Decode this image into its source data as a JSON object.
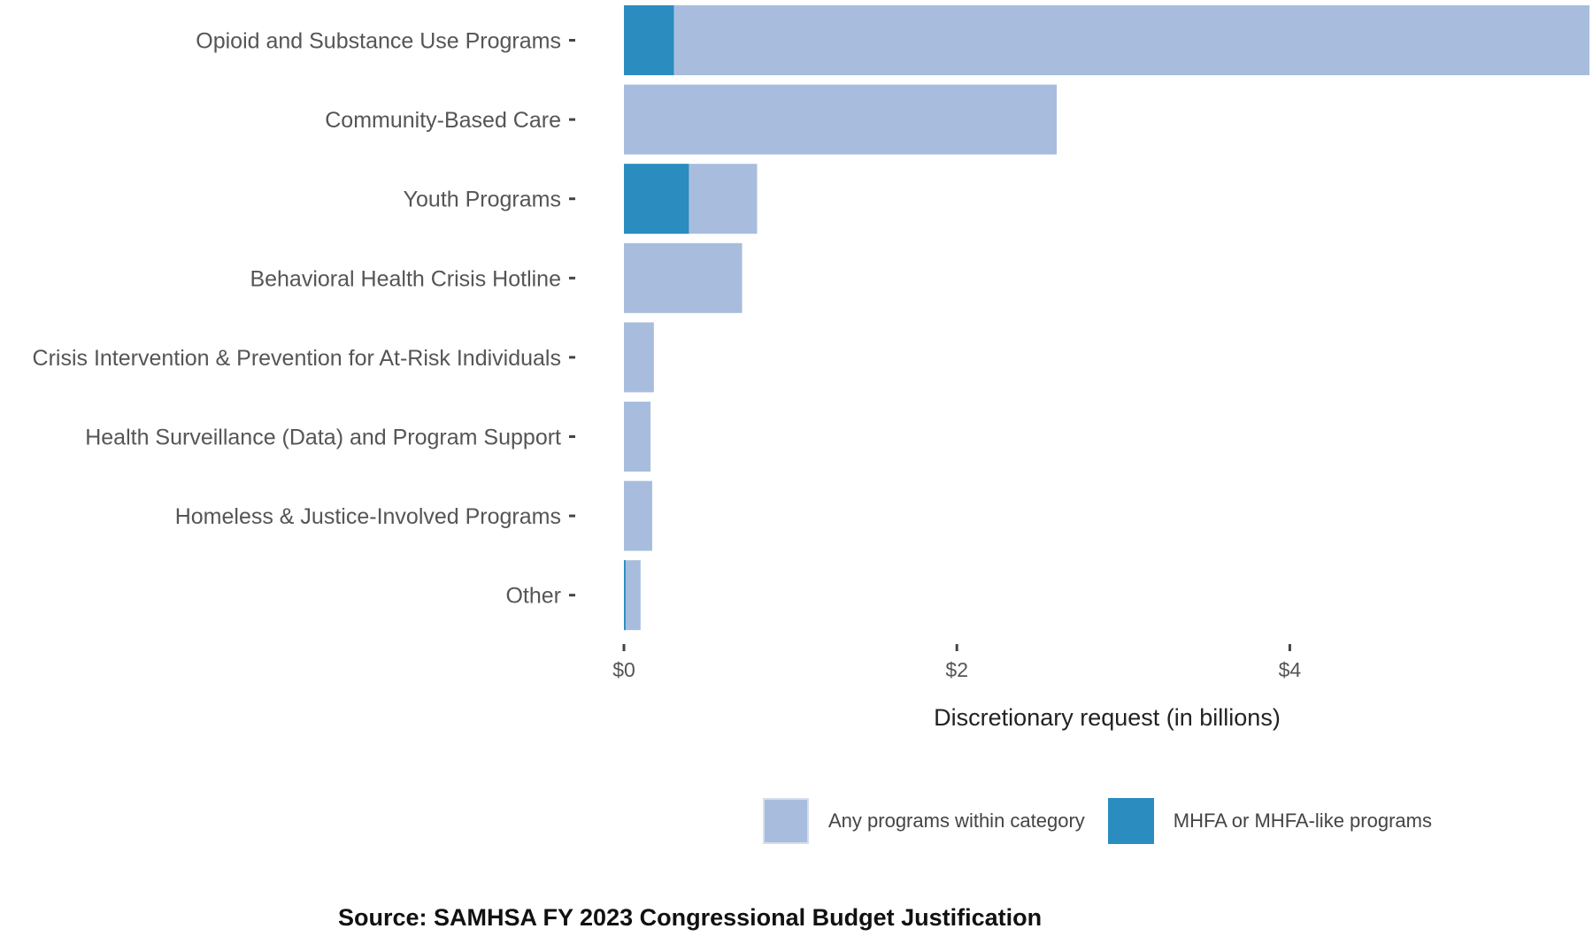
{
  "chart_data": {
    "type": "bar",
    "orientation": "horizontal",
    "categories": [
      "Opioid and Substance Use Programs",
      "Community-Based Care",
      "Youth Programs",
      "Behavioral Health Crisis Hotline",
      "Crisis Intervention & Prevention for At-Risk Individuals",
      "Health Surveillance (Data) and Program Support",
      "Homeless & Justice-Involved Programs",
      "Other"
    ],
    "series": [
      {
        "name": "Any programs within category",
        "color": "#a8bddd",
        "values": [
          5.8,
          2.6,
          0.8,
          0.71,
          0.18,
          0.16,
          0.17,
          0.1
        ]
      },
      {
        "name": "MHFA or MHFA-like programs",
        "color": "#2b8cc0",
        "values": [
          0.3,
          0,
          0.39,
          0,
          0,
          0,
          0,
          0.01
        ]
      }
    ],
    "xlabel": "Discretionary request (in billions)",
    "xlim": [
      0,
      5.8
    ],
    "xticks": [
      0,
      2,
      4
    ],
    "xtick_labels": [
      "$0",
      "$2",
      "$4"
    ],
    "legend_position": "bottom",
    "grid": false
  },
  "legend": {
    "items": [
      {
        "label": "Any programs within category",
        "color": "#a8bddd"
      },
      {
        "label": "MHFA or MHFA-like programs",
        "color": "#2b8cc0"
      }
    ]
  },
  "source": "Source: SAMHSA FY 2023 Congressional Budget Justification"
}
